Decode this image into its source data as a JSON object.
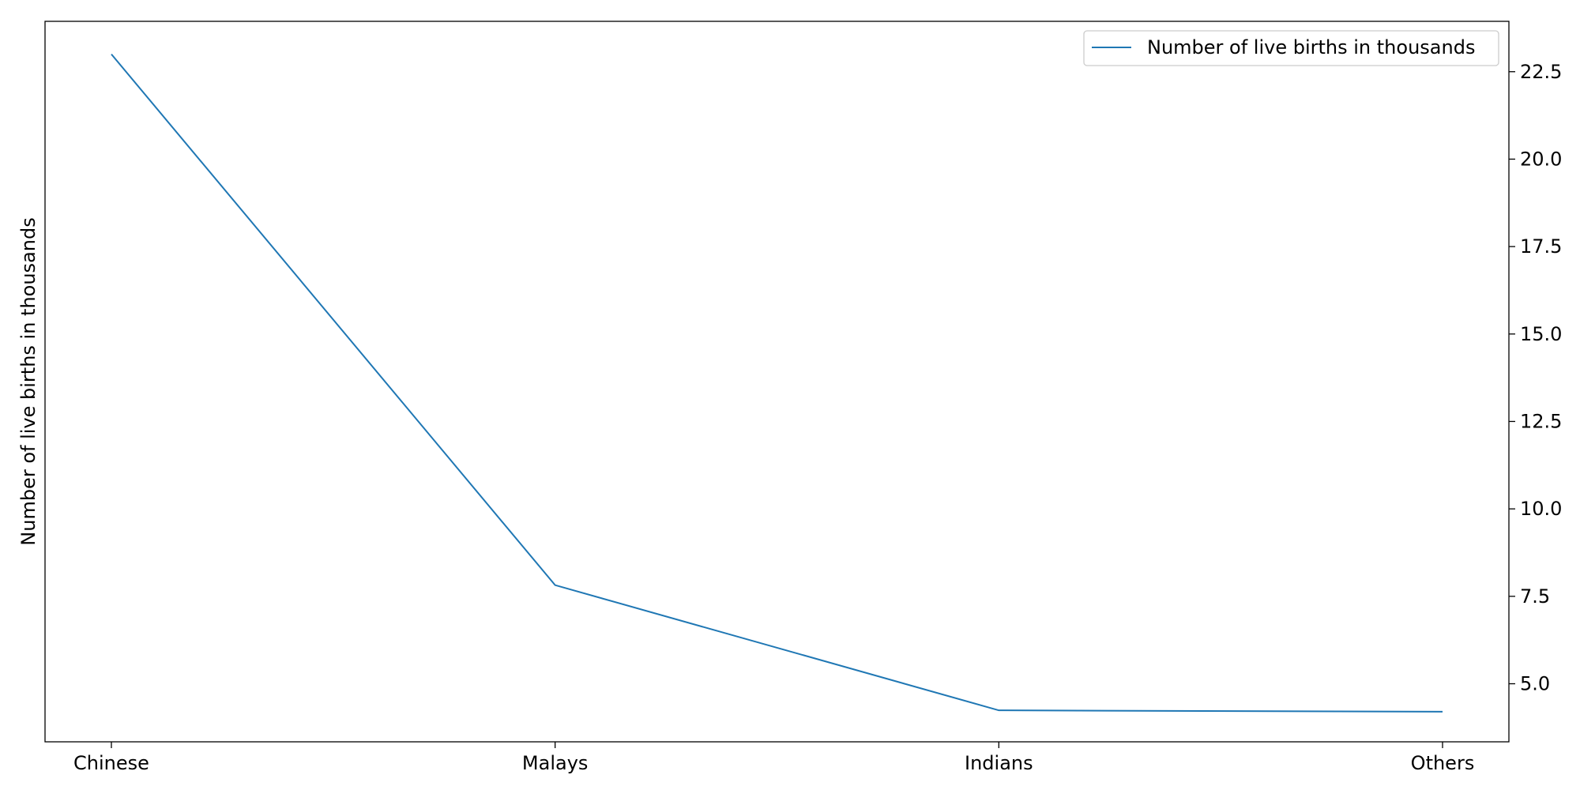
{
  "chart_data": {
    "type": "line",
    "categories": [
      "Chinese",
      "Malays",
      "Indians",
      "Others"
    ],
    "series": [
      {
        "name": "Number of live births in thousands",
        "values": [
          23.0,
          7.82,
          4.24,
          4.2
        ],
        "color": "#1f77b4"
      }
    ],
    "ylabel": "Number of live births in thousands",
    "yaxis_side": "right",
    "ylabel_side": "left",
    "ylim": [
      3.34,
      23.94
    ],
    "yticks": [
      5.0,
      7.5,
      10.0,
      12.5,
      15.0,
      17.5,
      20.0,
      22.5
    ],
    "ytick_labels": [
      "5.0",
      "7.5",
      "10.0",
      "12.5",
      "15.0",
      "17.5",
      "20.0",
      "22.5"
    ],
    "grid": false,
    "legend_position": "top-right"
  }
}
